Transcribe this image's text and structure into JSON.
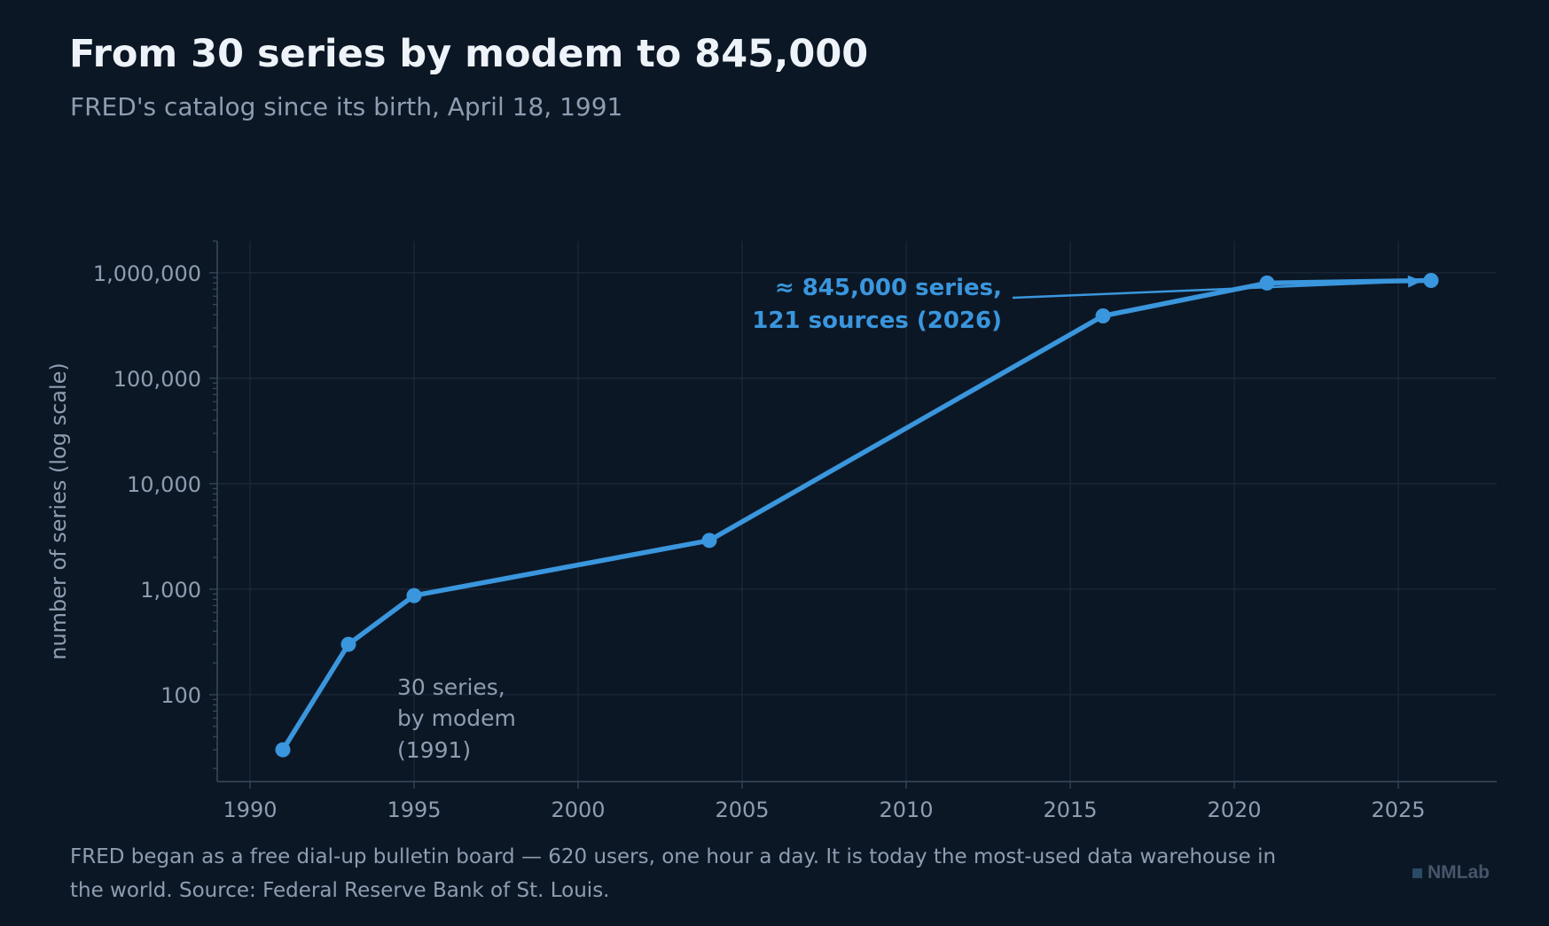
{
  "header": {
    "title": "From 30 series by modem to 845,000",
    "subtitle": "FRED's catalog since its birth, April 18, 1991"
  },
  "footer": {
    "text": "FRED began as a free dial-up bulletin board — 620 users, one hour a day. It is today the most-used data warehouse in the world. Source: Federal Reserve Bank of St. Louis.",
    "brand": "NMLab"
  },
  "colors": {
    "background": "#0c1725",
    "line": "#3a96dd",
    "grid": "#1c2a3b",
    "axis": "#3a4a5d",
    "tick_text": "#8e9db1"
  },
  "chart_data": {
    "type": "line",
    "title": "From 30 series by modem to 845,000",
    "subtitle": "FRED's catalog since its birth, April 18, 1991",
    "xlabel": "",
    "ylabel": "number of series (log scale)",
    "yscale": "log",
    "xlim": [
      1989,
      2028
    ],
    "ylim": [
      15,
      2000000
    ],
    "x_ticks": [
      1990,
      1995,
      2000,
      2005,
      2010,
      2015,
      2020,
      2025
    ],
    "y_ticks": [
      100,
      1000,
      10000,
      100000,
      1000000
    ],
    "y_tick_labels": [
      "100",
      "1,000",
      "10,000",
      "100,000",
      "1,000,000"
    ],
    "grid": true,
    "series": [
      {
        "x": [
          1991,
          1993,
          1995,
          2004,
          2016,
          2021,
          2026
        ],
        "y": [
          30,
          300,
          870,
          2900,
          390000,
          800000,
          845000
        ]
      }
    ],
    "annotations": [
      {
        "lines": [
          "≈ 845,000 series,",
          "121 sources (2026)"
        ],
        "target": [
          2026,
          845000
        ],
        "arrow": true
      },
      {
        "lines": [
          "30 series,",
          "by modem",
          "(1991)"
        ],
        "target": [
          1991,
          30
        ],
        "arrow": false
      }
    ]
  }
}
